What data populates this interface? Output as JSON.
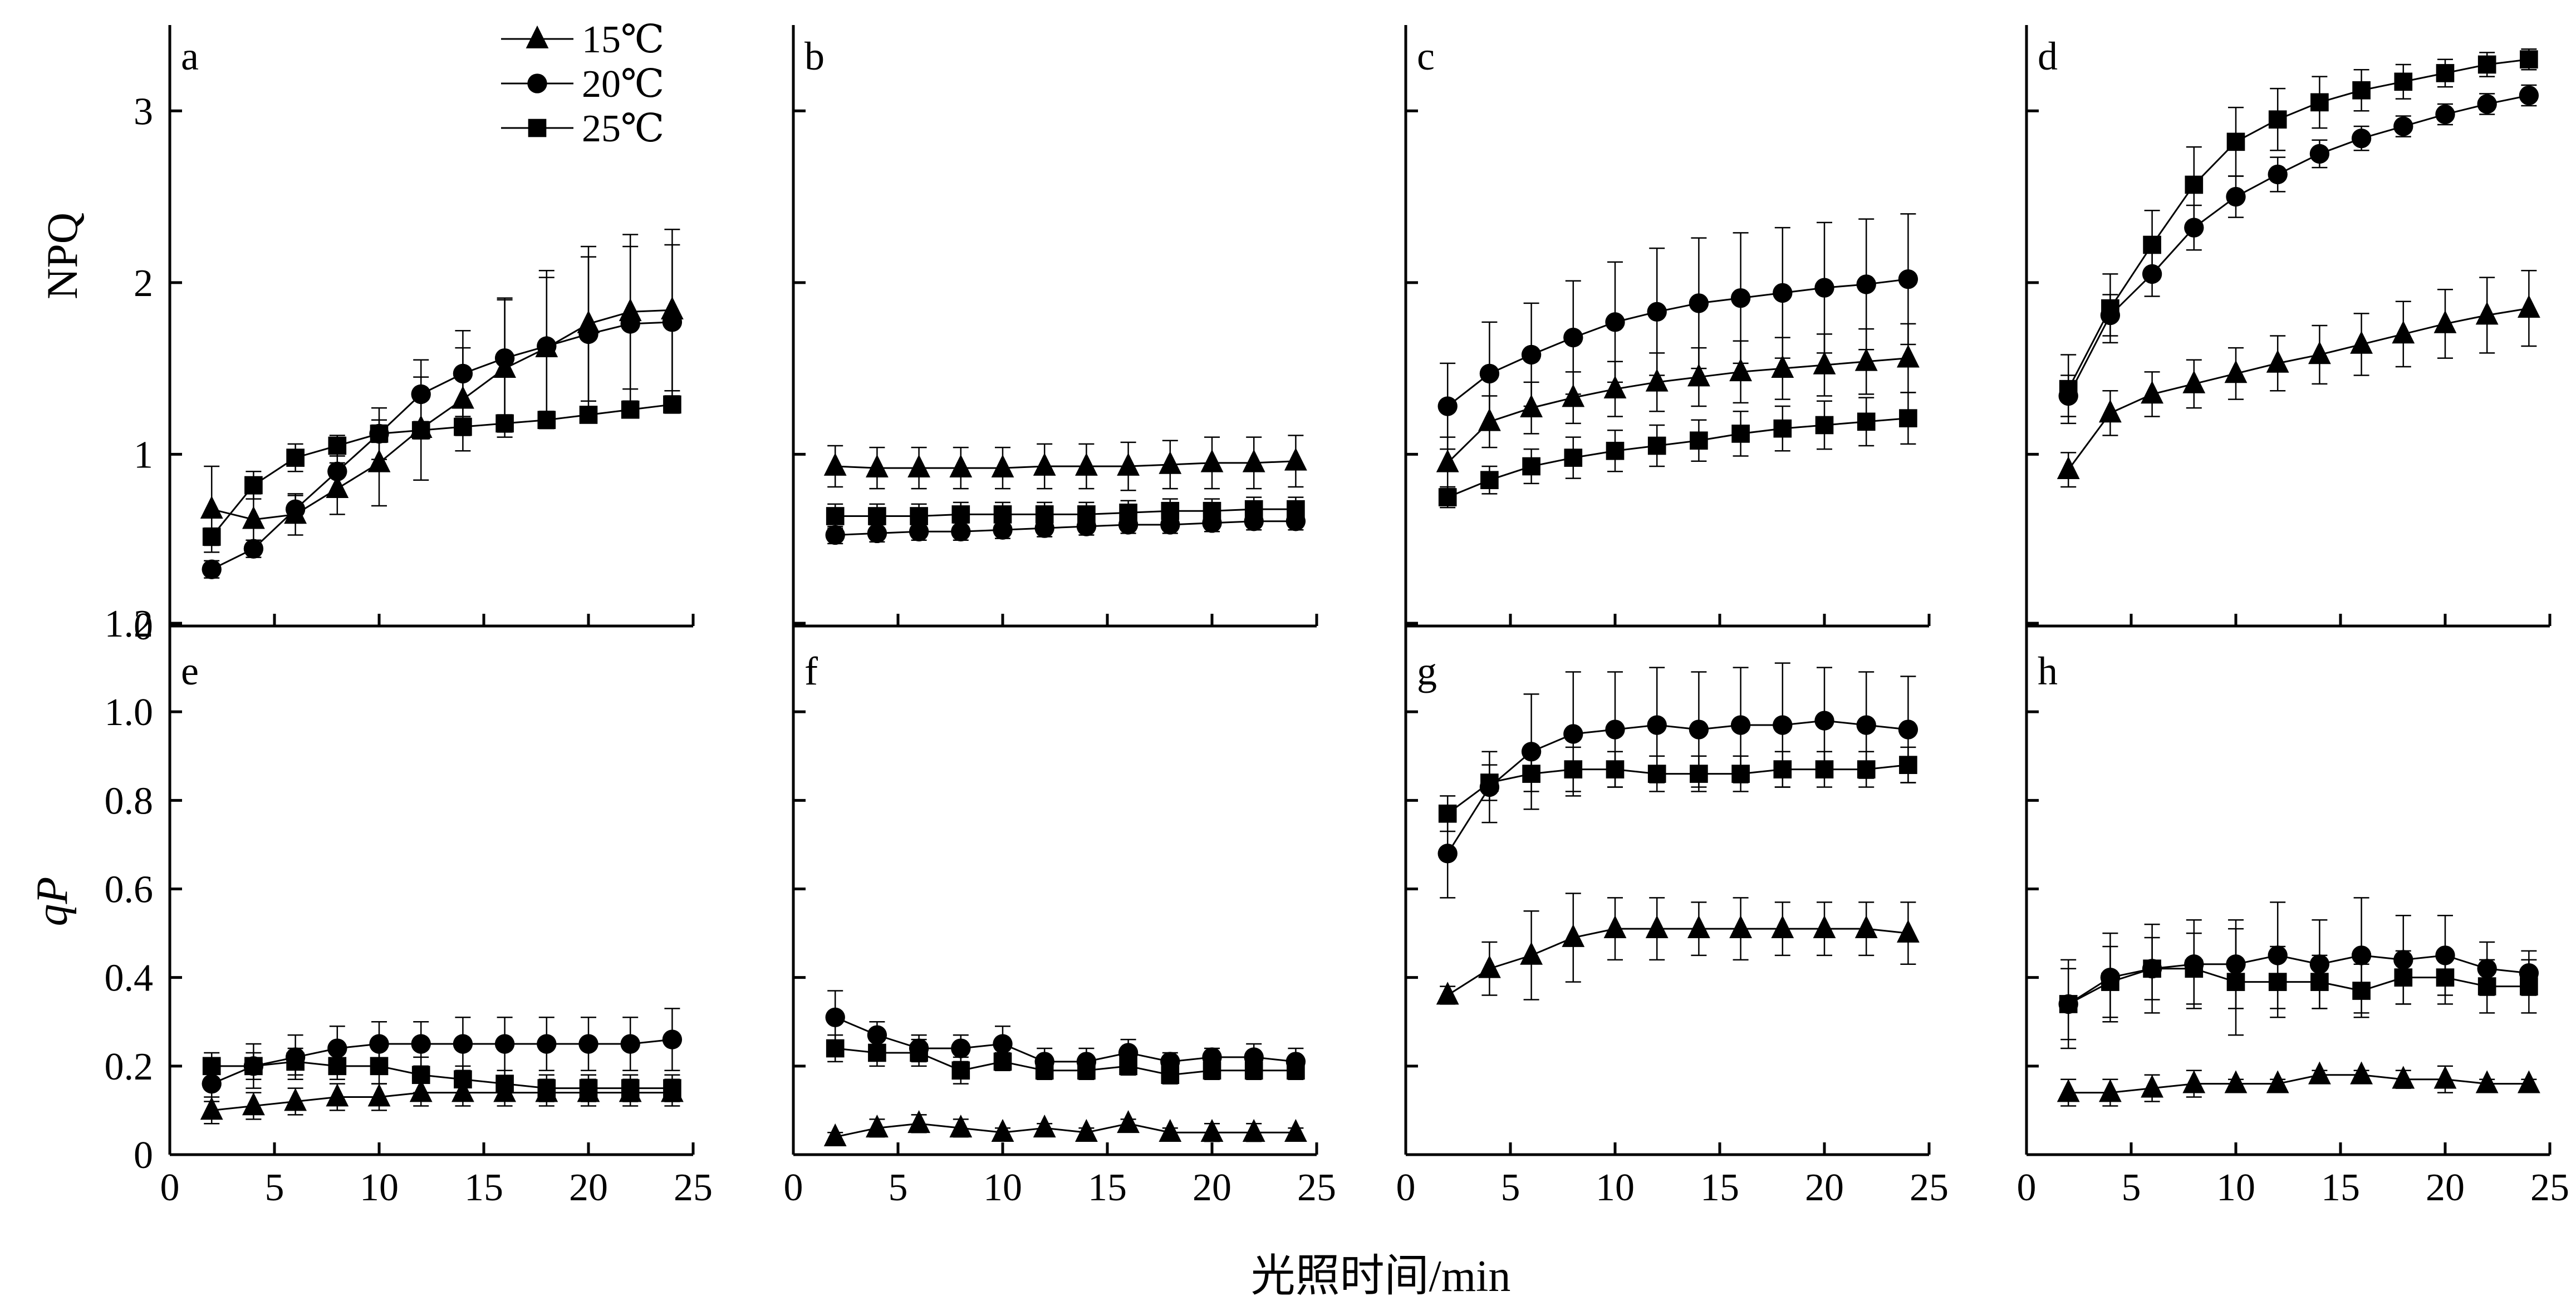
{
  "figure": {
    "xlabel": "光照时间/min",
    "top_ylabel": "NPQ",
    "bottom_ylabel": "qP",
    "legend": [
      {
        "label": "15℃",
        "marker": "triangle"
      },
      {
        "label": "20℃",
        "marker": "circle"
      },
      {
        "label": "25℃",
        "marker": "square"
      }
    ],
    "ink_color": "#000000"
  },
  "chart_data": [
    {
      "type": "line",
      "panel": "a",
      "x": [
        2,
        4,
        6,
        8,
        10,
        12,
        14,
        16,
        18,
        20,
        22,
        24
      ],
      "xlim": [
        0,
        25
      ],
      "ylim": [
        0,
        3.5
      ],
      "xticks": [],
      "yticks": [
        0,
        1,
        2,
        3
      ],
      "series": [
        {
          "name": "15℃",
          "marker": "triangle",
          "values": [
            0.68,
            0.62,
            0.65,
            0.8,
            0.95,
            1.15,
            1.32,
            1.5,
            1.62,
            1.76,
            1.83,
            1.84
          ],
          "errors": [
            0.25,
            0.15,
            0.12,
            0.15,
            0.25,
            0.3,
            0.3,
            0.4,
            0.45,
            0.45,
            0.45,
            0.47
          ]
        },
        {
          "name": "20℃",
          "marker": "circle",
          "values": [
            0.33,
            0.45,
            0.68,
            0.9,
            1.12,
            1.35,
            1.47,
            1.56,
            1.63,
            1.7,
            1.76,
            1.77
          ],
          "errors": [
            0.05,
            0.05,
            0.08,
            0.12,
            0.15,
            0.2,
            0.25,
            0.35,
            0.4,
            0.45,
            0.45,
            0.45
          ]
        },
        {
          "name": "25℃",
          "marker": "square",
          "values": [
            0.52,
            0.82,
            0.98,
            1.05,
            1.12,
            1.14,
            1.16,
            1.18,
            1.2,
            1.23,
            1.26,
            1.29
          ],
          "errors": [
            0.05,
            0.08,
            0.08,
            0.06,
            0.05,
            0.05,
            0.05,
            0.05,
            0.05,
            0.04,
            0.04,
            0.05
          ]
        }
      ]
    },
    {
      "type": "line",
      "panel": "b",
      "x": [
        2,
        4,
        6,
        8,
        10,
        12,
        14,
        16,
        18,
        20,
        22,
        24
      ],
      "xlim": [
        0,
        25
      ],
      "ylim": [
        0,
        3.5
      ],
      "xticks": [],
      "yticks": [],
      "series": [
        {
          "name": "15℃",
          "marker": "triangle",
          "values": [
            0.93,
            0.92,
            0.92,
            0.92,
            0.92,
            0.93,
            0.93,
            0.93,
            0.94,
            0.95,
            0.95,
            0.96
          ],
          "errors": [
            0.12,
            0.12,
            0.12,
            0.12,
            0.12,
            0.13,
            0.13,
            0.14,
            0.14,
            0.15,
            0.15,
            0.15
          ]
        },
        {
          "name": "20℃",
          "marker": "circle",
          "values": [
            0.53,
            0.54,
            0.55,
            0.55,
            0.56,
            0.57,
            0.58,
            0.59,
            0.59,
            0.6,
            0.61,
            0.61
          ],
          "errors": [
            0.05,
            0.05,
            0.05,
            0.05,
            0.05,
            0.05,
            0.05,
            0.05,
            0.05,
            0.05,
            0.05,
            0.05
          ]
        },
        {
          "name": "25℃",
          "marker": "square",
          "values": [
            0.64,
            0.64,
            0.64,
            0.65,
            0.65,
            0.65,
            0.65,
            0.66,
            0.67,
            0.67,
            0.68,
            0.68
          ],
          "errors": [
            0.07,
            0.07,
            0.07,
            0.07,
            0.07,
            0.07,
            0.07,
            0.07,
            0.07,
            0.07,
            0.07,
            0.07
          ]
        }
      ]
    },
    {
      "type": "line",
      "panel": "c",
      "x": [
        2,
        4,
        6,
        8,
        10,
        12,
        14,
        16,
        18,
        20,
        22,
        24
      ],
      "xlim": [
        0,
        25
      ],
      "ylim": [
        0,
        3.5
      ],
      "xticks": [],
      "yticks": [],
      "series": [
        {
          "name": "15℃",
          "marker": "triangle",
          "values": [
            0.95,
            1.19,
            1.27,
            1.33,
            1.38,
            1.42,
            1.45,
            1.48,
            1.5,
            1.52,
            1.54,
            1.56
          ],
          "errors": [
            0.15,
            0.15,
            0.15,
            0.15,
            0.16,
            0.17,
            0.17,
            0.18,
            0.18,
            0.18,
            0.19,
            0.2
          ]
        },
        {
          "name": "20℃",
          "marker": "circle",
          "values": [
            1.28,
            1.47,
            1.58,
            1.68,
            1.77,
            1.83,
            1.88,
            1.91,
            1.94,
            1.97,
            1.99,
            2.02
          ],
          "errors": [
            0.25,
            0.3,
            0.3,
            0.33,
            0.35,
            0.37,
            0.38,
            0.38,
            0.38,
            0.38,
            0.38,
            0.38
          ]
        },
        {
          "name": "25℃",
          "marker": "square",
          "values": [
            0.75,
            0.85,
            0.93,
            0.98,
            1.02,
            1.05,
            1.08,
            1.12,
            1.15,
            1.17,
            1.19,
            1.21
          ],
          "errors": [
            0.06,
            0.08,
            0.1,
            0.12,
            0.12,
            0.12,
            0.12,
            0.13,
            0.13,
            0.14,
            0.14,
            0.15
          ]
        }
      ]
    },
    {
      "type": "line",
      "panel": "d",
      "x": [
        2,
        4,
        6,
        8,
        10,
        12,
        14,
        16,
        18,
        20,
        22,
        24
      ],
      "xlim": [
        0,
        25
      ],
      "ylim": [
        0,
        3.5
      ],
      "xticks": [],
      "yticks": [],
      "series": [
        {
          "name": "15℃",
          "marker": "triangle",
          "values": [
            0.91,
            1.24,
            1.35,
            1.41,
            1.47,
            1.53,
            1.58,
            1.64,
            1.7,
            1.76,
            1.81,
            1.85
          ],
          "errors": [
            0.1,
            0.13,
            0.13,
            0.14,
            0.15,
            0.16,
            0.17,
            0.18,
            0.19,
            0.2,
            0.22,
            0.22
          ]
        },
        {
          "name": "20℃",
          "marker": "circle",
          "values": [
            1.34,
            1.81,
            2.05,
            2.32,
            2.5,
            2.63,
            2.75,
            2.84,
            2.91,
            2.98,
            3.04,
            3.09
          ],
          "errors": [
            0.12,
            0.12,
            0.13,
            0.13,
            0.12,
            0.1,
            0.08,
            0.07,
            0.06,
            0.06,
            0.06,
            0.06
          ]
        },
        {
          "name": "25℃",
          "marker": "square",
          "values": [
            1.38,
            1.85,
            2.22,
            2.57,
            2.82,
            2.95,
            3.05,
            3.12,
            3.17,
            3.22,
            3.27,
            3.3
          ],
          "errors": [
            0.2,
            0.2,
            0.2,
            0.22,
            0.2,
            0.18,
            0.15,
            0.12,
            0.1,
            0.08,
            0.07,
            0.06
          ]
        }
      ]
    },
    {
      "type": "line",
      "panel": "e",
      "x": [
        2,
        4,
        6,
        8,
        10,
        12,
        14,
        16,
        18,
        20,
        22,
        24
      ],
      "xlim": [
        0,
        25
      ],
      "ylim": [
        0,
        1.2
      ],
      "xticks": [
        0,
        5,
        10,
        15,
        20,
        25
      ],
      "yticks": [
        0,
        0.2,
        0.4,
        0.6,
        0.8,
        1.0,
        1.2
      ],
      "series": [
        {
          "name": "15℃",
          "marker": "triangle",
          "values": [
            0.1,
            0.11,
            0.12,
            0.13,
            0.13,
            0.14,
            0.14,
            0.14,
            0.14,
            0.14,
            0.14,
            0.14
          ],
          "errors": [
            0.03,
            0.03,
            0.03,
            0.03,
            0.03,
            0.03,
            0.03,
            0.03,
            0.03,
            0.03,
            0.03,
            0.03
          ]
        },
        {
          "name": "20℃",
          "marker": "circle",
          "values": [
            0.16,
            0.2,
            0.22,
            0.24,
            0.25,
            0.25,
            0.25,
            0.25,
            0.25,
            0.25,
            0.25,
            0.26
          ],
          "errors": [
            0.04,
            0.05,
            0.05,
            0.05,
            0.05,
            0.05,
            0.06,
            0.06,
            0.06,
            0.06,
            0.06,
            0.07
          ]
        },
        {
          "name": "25℃",
          "marker": "square",
          "values": [
            0.2,
            0.2,
            0.21,
            0.2,
            0.2,
            0.18,
            0.17,
            0.16,
            0.15,
            0.15,
            0.15,
            0.15
          ],
          "errors": [
            0.03,
            0.03,
            0.03,
            0.03,
            0.04,
            0.04,
            0.03,
            0.03,
            0.03,
            0.03,
            0.03,
            0.03
          ]
        }
      ]
    },
    {
      "type": "line",
      "panel": "f",
      "x": [
        2,
        4,
        6,
        8,
        10,
        12,
        14,
        16,
        18,
        20,
        22,
        24
      ],
      "xlim": [
        0,
        25
      ],
      "ylim": [
        0,
        1.2
      ],
      "xticks": [
        0,
        5,
        10,
        15,
        20,
        25
      ],
      "yticks": [],
      "series": [
        {
          "name": "15℃",
          "marker": "triangle",
          "values": [
            0.04,
            0.06,
            0.07,
            0.06,
            0.05,
            0.06,
            0.05,
            0.07,
            0.05,
            0.05,
            0.05,
            0.05
          ],
          "errors": [
            0.01,
            0.02,
            0.02,
            0.02,
            0.01,
            0.01,
            0.01,
            0.01,
            0.01,
            0.02,
            0.02,
            0.01
          ]
        },
        {
          "name": "20℃",
          "marker": "circle",
          "values": [
            0.31,
            0.27,
            0.24,
            0.24,
            0.25,
            0.21,
            0.21,
            0.23,
            0.21,
            0.22,
            0.22,
            0.21
          ],
          "errors": [
            0.06,
            0.03,
            0.03,
            0.03,
            0.04,
            0.03,
            0.03,
            0.03,
            0.02,
            0.02,
            0.03,
            0.03
          ]
        },
        {
          "name": "25℃",
          "marker": "square",
          "values": [
            0.24,
            0.23,
            0.23,
            0.19,
            0.21,
            0.19,
            0.19,
            0.2,
            0.18,
            0.19,
            0.19,
            0.19
          ],
          "errors": [
            0.03,
            0.03,
            0.03,
            0.03,
            0.02,
            0.02,
            0.02,
            0.02,
            0.02,
            0.02,
            0.02,
            0.02
          ]
        }
      ]
    },
    {
      "type": "line",
      "panel": "g",
      "x": [
        2,
        4,
        6,
        8,
        10,
        12,
        14,
        16,
        18,
        20,
        22,
        24
      ],
      "xlim": [
        0,
        25
      ],
      "ylim": [
        0,
        1.2
      ],
      "xticks": [
        0,
        5,
        10,
        15,
        20,
        25
      ],
      "yticks": [],
      "series": [
        {
          "name": "15℃",
          "marker": "triangle",
          "values": [
            0.36,
            0.42,
            0.45,
            0.49,
            0.51,
            0.51,
            0.51,
            0.51,
            0.51,
            0.51,
            0.51,
            0.5
          ],
          "errors": [
            0.02,
            0.06,
            0.1,
            0.1,
            0.07,
            0.07,
            0.06,
            0.07,
            0.06,
            0.06,
            0.06,
            0.07
          ]
        },
        {
          "name": "20℃",
          "marker": "circle",
          "values": [
            0.68,
            0.83,
            0.91,
            0.95,
            0.96,
            0.97,
            0.96,
            0.97,
            0.97,
            0.98,
            0.97,
            0.96
          ],
          "errors": [
            0.1,
            0.08,
            0.13,
            0.14,
            0.13,
            0.13,
            0.13,
            0.13,
            0.14,
            0.12,
            0.12,
            0.12
          ]
        },
        {
          "name": "25℃",
          "marker": "square",
          "values": [
            0.77,
            0.84,
            0.86,
            0.87,
            0.87,
            0.86,
            0.86,
            0.86,
            0.87,
            0.87,
            0.87,
            0.88
          ],
          "errors": [
            0.04,
            0.04,
            0.04,
            0.05,
            0.04,
            0.04,
            0.04,
            0.04,
            0.04,
            0.04,
            0.04,
            0.04
          ]
        }
      ]
    },
    {
      "type": "line",
      "panel": "h",
      "x": [
        2,
        4,
        6,
        8,
        10,
        12,
        14,
        16,
        18,
        20,
        22,
        24
      ],
      "xlim": [
        0,
        25
      ],
      "ylim": [
        0,
        1.2
      ],
      "xticks": [
        0,
        5,
        10,
        15,
        20,
        25
      ],
      "yticks": [],
      "series": [
        {
          "name": "15℃",
          "marker": "triangle",
          "values": [
            0.14,
            0.14,
            0.15,
            0.16,
            0.16,
            0.16,
            0.18,
            0.18,
            0.17,
            0.17,
            0.16,
            0.16
          ],
          "errors": [
            0.03,
            0.03,
            0.03,
            0.03,
            0.01,
            0.01,
            0.01,
            0.01,
            0.02,
            0.03,
            0.01,
            0.01
          ]
        },
        {
          "name": "20℃",
          "marker": "circle",
          "values": [
            0.34,
            0.4,
            0.42,
            0.43,
            0.43,
            0.45,
            0.43,
            0.45,
            0.44,
            0.45,
            0.42,
            0.41
          ],
          "errors": [
            0.08,
            0.1,
            0.1,
            0.1,
            0.1,
            0.12,
            0.1,
            0.13,
            0.1,
            0.09,
            0.06,
            0.05
          ]
        },
        {
          "name": "25℃",
          "marker": "square",
          "values": [
            0.34,
            0.39,
            0.42,
            0.42,
            0.39,
            0.39,
            0.39,
            0.37,
            0.4,
            0.4,
            0.38,
            0.38
          ],
          "errors": [
            0.1,
            0.08,
            0.07,
            0.08,
            0.12,
            0.08,
            0.06,
            0.06,
            0.06,
            0.06,
            0.06,
            0.06
          ]
        }
      ]
    }
  ]
}
